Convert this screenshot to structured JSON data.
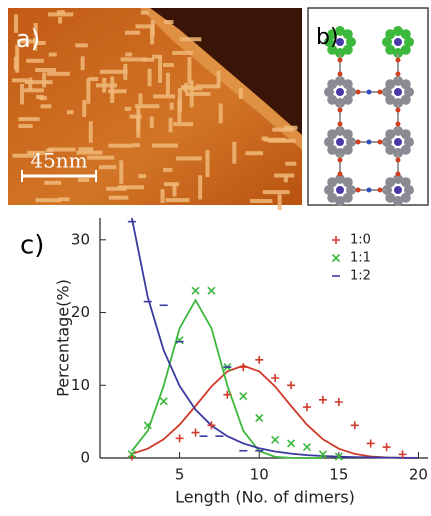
{
  "panels": [
    {
      "label": "a)",
      "scale_bar": "45nm"
    },
    {
      "label": "b)"
    }
  ],
  "chart_data": {
    "type": "scatter",
    "panel_label": "c)",
    "xlabel": "Length (No. of dimers)",
    "ylabel": "Percentage(%)",
    "xlim": [
      0,
      20.6
    ],
    "ylim": [
      0,
      33
    ],
    "xticks": [
      5,
      10,
      15,
      20
    ],
    "yticks": [
      0,
      10,
      20,
      30
    ],
    "legend": "upper right",
    "series": [
      {
        "name": "1:0",
        "color": "#d03a2a",
        "marker": "+",
        "x": [
          2,
          5,
          6,
          7,
          8,
          9,
          10,
          11,
          12,
          13,
          14,
          15,
          16,
          17,
          18,
          19
        ],
        "values": [
          0.2,
          2.7,
          3.5,
          4.5,
          8.7,
          12.5,
          13.5,
          11,
          10,
          7,
          8,
          7.7,
          4.5,
          2,
          1.5,
          0.5
        ]
      },
      {
        "name": "1:1",
        "color": "#3cb83c",
        "marker": "x",
        "x": [
          2,
          3,
          4,
          5,
          6,
          7,
          8,
          9,
          10,
          11,
          12,
          13,
          14,
          15
        ],
        "values": [
          0.5,
          4.5,
          7.8,
          16.2,
          23,
          23,
          12.5,
          8.5,
          5.5,
          2.5,
          2,
          1.5,
          0.5,
          0.2
        ]
      },
      {
        "name": "1:2",
        "color": "#3a3aa0",
        "marker": "-",
        "x": [
          2,
          3,
          4,
          5,
          6.5,
          7.5,
          8,
          9,
          10
        ],
        "values": [
          32.5,
          21.5,
          21,
          16,
          3,
          3,
          12.5,
          1,
          1
        ]
      }
    ],
    "fits": [
      {
        "color": "#d03a2a",
        "x": [
          2,
          3,
          4,
          5,
          6,
          7,
          8,
          9,
          10,
          11,
          12,
          13,
          14,
          15,
          16,
          17,
          18,
          19,
          20
        ],
        "values": [
          0.56,
          1.28,
          2.58,
          4.58,
          7.15,
          9.84,
          11.9,
          12.7,
          11.9,
          9.84,
          7.15,
          4.58,
          2.58,
          1.28,
          0.56,
          0.21,
          0.07,
          0.02,
          0.01
        ]
      },
      {
        "color": "#3cb83c",
        "x": [
          2,
          3,
          4,
          5,
          6,
          7,
          8,
          9,
          10,
          11,
          12,
          13,
          14
        ],
        "values": [
          0.95,
          3.74,
          9.94,
          17.85,
          21.7,
          17.85,
          9.94,
          3.74,
          0.95,
          0.16,
          0.02,
          0,
          0
        ]
      },
      {
        "color": "#3a3aa0",
        "x": [
          2,
          3,
          4,
          5,
          6,
          7,
          8,
          9,
          10,
          11,
          12,
          13,
          14,
          15,
          16,
          18,
          20
        ],
        "values": [
          33,
          22.1,
          14.8,
          9.9,
          6.65,
          4.46,
          2.99,
          2.0,
          1.34,
          0.9,
          0.6,
          0.4,
          0.27,
          0.18,
          0.12,
          0.05,
          0.02
        ]
      }
    ]
  }
}
